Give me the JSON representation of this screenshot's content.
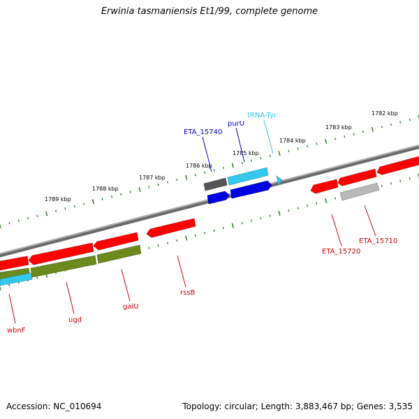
{
  "title": "Erwinia tasmaniensis Et1/99, complete genome",
  "footer": {
    "accession": "Accession: NC_010694",
    "summary": "Topology: circular; Length: 3,883,467 bp; Genes: 3,535"
  },
  "colors": {
    "cds": "#ff0000",
    "gene": "#0000e0",
    "trna": "#33c8ec",
    "misc_dark": "#555555",
    "misc_light": "#b8b8b8",
    "olive": "#6b8a1e",
    "outer_ticks": "#2f8a2f",
    "inner_ticks": "#2f8a2f",
    "label_cds": "#cc0000",
    "label_gene": "#0000cc",
    "label_trna": "#33c8ec"
  },
  "scale_labels": [
    {
      "text": "1782 kbp",
      "kbp": 1782
    },
    {
      "text": "1783 kbp",
      "kbp": 1783
    },
    {
      "text": "1784 kbp",
      "kbp": 1784
    },
    {
      "text": "1785 kbp",
      "kbp": 1785
    },
    {
      "text": "1786 kbp",
      "kbp": 1786
    },
    {
      "text": "1787 kbp",
      "kbp": 1787
    },
    {
      "text": "1788 kbp",
      "kbp": 1788
    },
    {
      "text": "1789 kbp",
      "kbp": 1789
    }
  ],
  "features": [
    {
      "id": "f1",
      "type": "CDS",
      "color": "cds",
      "lane": "forward"
    },
    {
      "id": "f2",
      "type": "CDS",
      "color": "cds",
      "lane": "forward"
    },
    {
      "id": "f3",
      "type": "CDS",
      "color": "cds",
      "lane": "forward"
    },
    {
      "id": "f4",
      "type": "CDS",
      "color": "cds",
      "lane": "forward"
    },
    {
      "id": "f5",
      "type": "CDS",
      "color": "cds",
      "lane": "forward"
    },
    {
      "id": "f6",
      "type": "CDS",
      "color": "cds",
      "lane": "forward"
    },
    {
      "id": "f7",
      "type": "CDS",
      "color": "cds",
      "lane": "forward"
    },
    {
      "id": "f8",
      "type": "CDS",
      "color": "cds",
      "lane": "forward"
    },
    {
      "id": "f9",
      "type": "misc",
      "color": "misc_dark",
      "lane": "outer"
    },
    {
      "id": "f10",
      "type": "tRNA",
      "color": "trna",
      "lane": "outer"
    },
    {
      "id": "f11",
      "type": "gene",
      "color": "gene",
      "lane": "forward"
    },
    {
      "id": "f12",
      "type": "gene",
      "color": "gene",
      "lane": "forward"
    },
    {
      "id": "f13",
      "type": "misc",
      "color": "misc_light",
      "lane": "reverse"
    },
    {
      "id": "f14",
      "type": "CDS",
      "color": "olive",
      "lane": "reverse"
    },
    {
      "id": "f15",
      "type": "CDS",
      "color": "olive",
      "lane": "reverse"
    },
    {
      "id": "f16",
      "type": "CDS",
      "color": "olive",
      "lane": "reverse"
    },
    {
      "id": "f17",
      "type": "tRNA",
      "color": "trna",
      "lane": "reverse"
    }
  ],
  "labels": [
    {
      "text": "tRNA-Tyr",
      "color": "label_trna"
    },
    {
      "text": "purU",
      "color": "label_gene"
    },
    {
      "text": "ETA_15740",
      "color": "label_gene"
    },
    {
      "text": "ETA_15710",
      "color": "label_cds"
    },
    {
      "text": "ETA_15720",
      "color": "label_cds"
    },
    {
      "text": "rssB",
      "color": "label_cds"
    },
    {
      "text": "galU",
      "color": "label_cds"
    },
    {
      "text": "ugd",
      "color": "label_cds"
    },
    {
      "text": "wbnF",
      "color": "label_cds"
    }
  ]
}
